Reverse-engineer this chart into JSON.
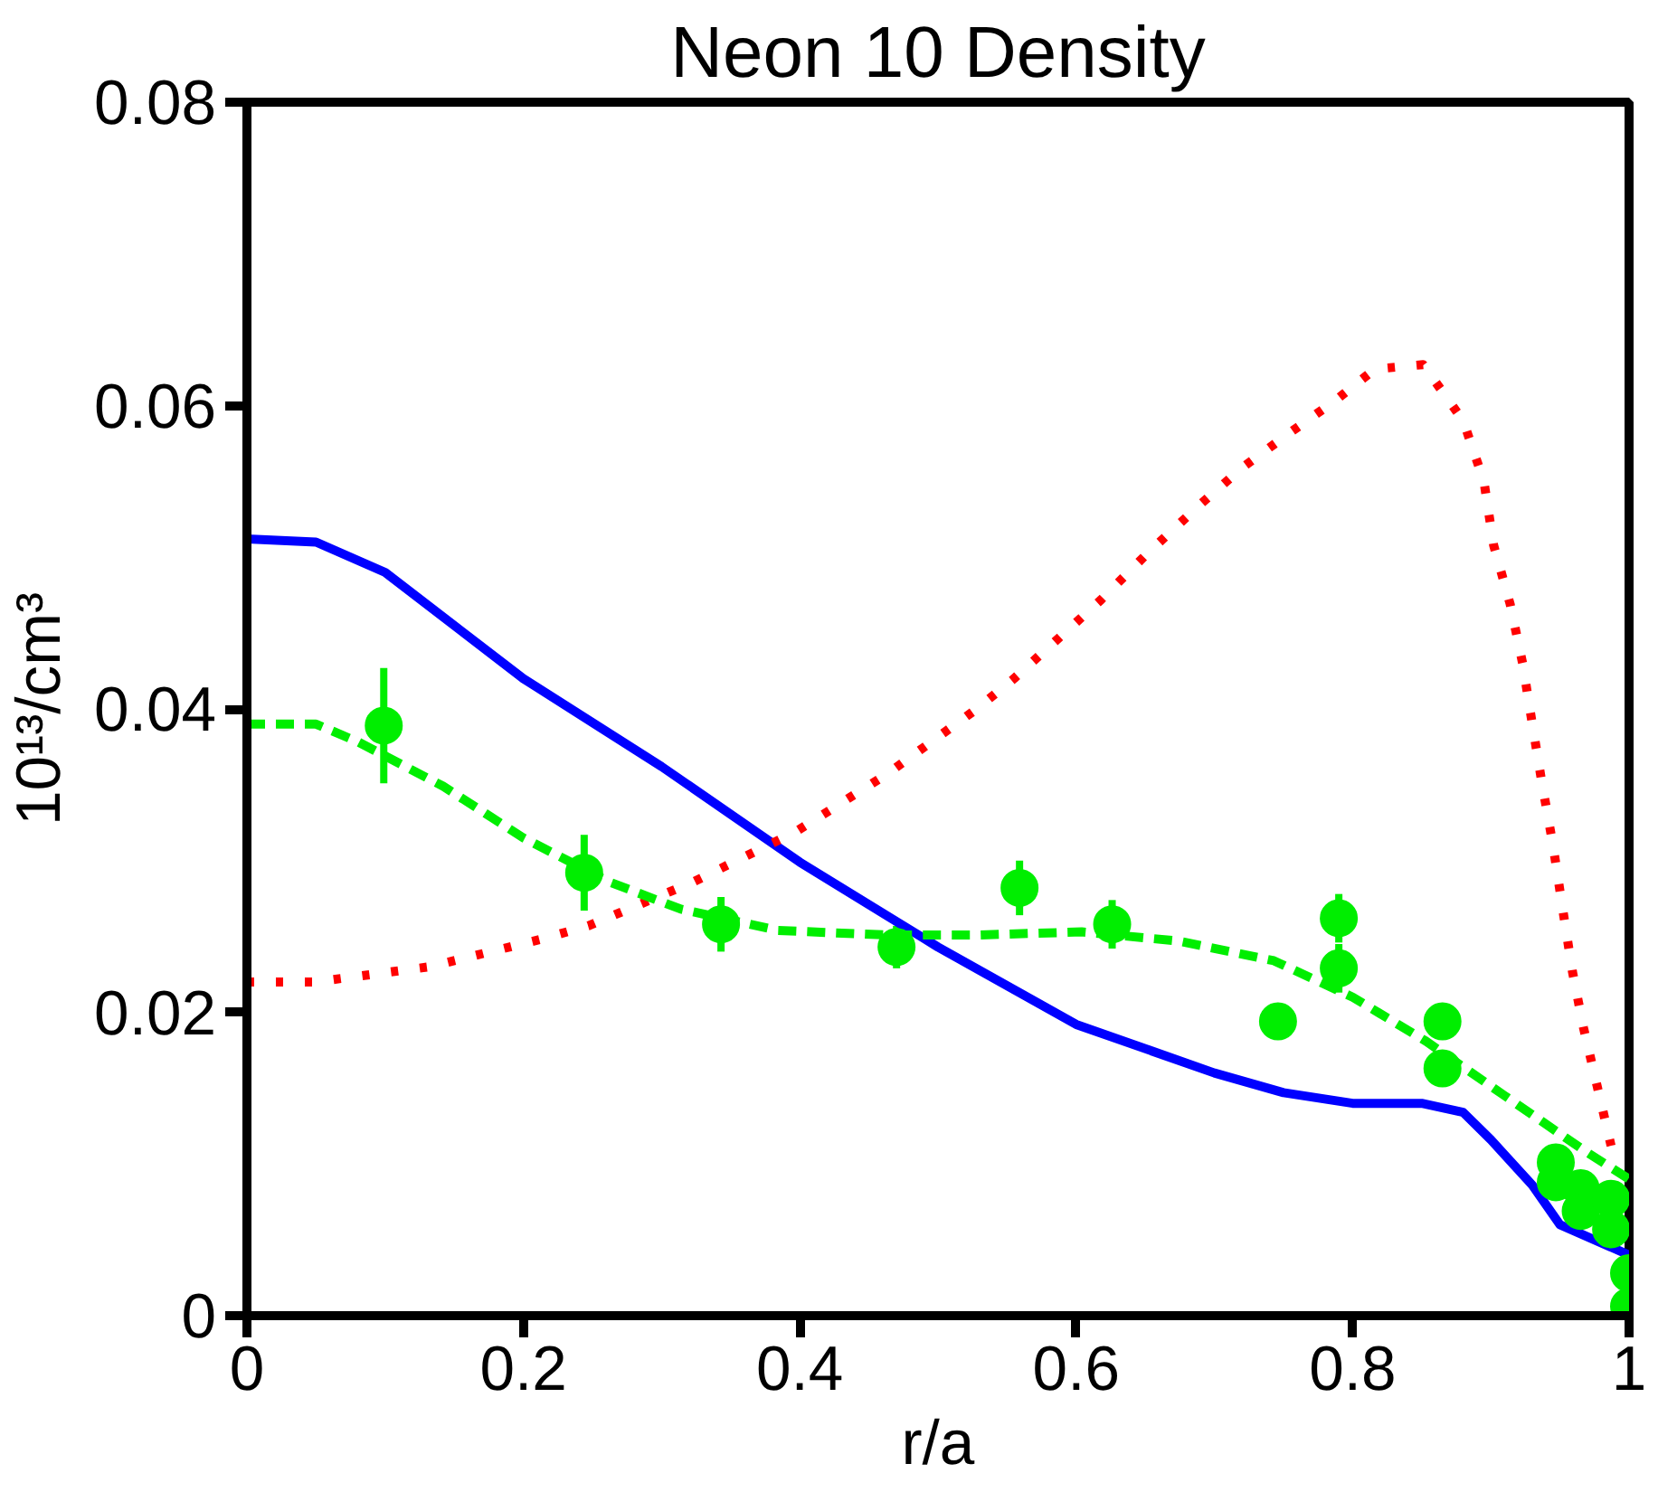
{
  "chart_data": {
    "type": "line",
    "title": "Neon 10 Density",
    "xlabel": "r/a",
    "ylabel": "10¹³/cm³",
    "xlim": [
      0,
      1
    ],
    "ylim": [
      0,
      0.08
    ],
    "xticks": [
      0,
      0.2,
      0.4,
      0.6,
      0.8,
      1
    ],
    "yticks": [
      0,
      0.02,
      0.04,
      0.06,
      0.08
    ],
    "grid": false,
    "series": [
      {
        "color": "#0000ff",
        "line_style": "solid",
        "x": [
          0,
          0.05,
          0.1,
          0.2,
          0.3,
          0.4,
          0.5,
          0.6,
          0.7,
          0.75,
          0.8,
          0.85,
          0.88,
          0.9,
          0.93,
          0.95,
          1.0
        ],
        "values": [
          0.0512,
          0.051,
          0.049,
          0.042,
          0.0362,
          0.0299,
          0.0243,
          0.0192,
          0.016,
          0.0147,
          0.014,
          0.014,
          0.0134,
          0.0116,
          0.0086,
          0.006,
          0.004
        ]
      },
      {
        "color": "#ff0000",
        "line_style": "dotted",
        "x": [
          0,
          0.049,
          0.132,
          0.212,
          0.247,
          0.323,
          0.397,
          0.463,
          0.528,
          0.555,
          0.618,
          0.652,
          0.69,
          0.72,
          0.756,
          0.787,
          0.816,
          0.851,
          0.88,
          0.895,
          0.902,
          0.914,
          0.923,
          0.93,
          0.937,
          0.945,
          0.952,
          0.959,
          0.967,
          0.977,
          0.987
        ],
        "values": [
          0.022,
          0.022,
          0.023,
          0.0248,
          0.0257,
          0.0286,
          0.0319,
          0.0357,
          0.04,
          0.042,
          0.0472,
          0.0503,
          0.0535,
          0.0559,
          0.0583,
          0.0603,
          0.0624,
          0.0627,
          0.059,
          0.055,
          0.0508,
          0.0469,
          0.043,
          0.039,
          0.0351,
          0.031,
          0.0268,
          0.0227,
          0.019,
          0.0151,
          0.0112
        ]
      },
      {
        "color": "#00ee00",
        "line_style": "dashed",
        "x": [
          0,
          0.05,
          0.081,
          0.142,
          0.2,
          0.262,
          0.314,
          0.384,
          0.462,
          0.53,
          0.604,
          0.674,
          0.743,
          0.8,
          0.853,
          0.91,
          0.969,
          1.0
        ],
        "values": [
          0.039,
          0.039,
          0.0378,
          0.0349,
          0.0315,
          0.0286,
          0.0268,
          0.0254,
          0.0251,
          0.0251,
          0.0253,
          0.0247,
          0.0234,
          0.021,
          0.0181,
          0.0145,
          0.0108,
          0.009
        ]
      },
      {
        "type": "scatter",
        "color": "#00ee00",
        "marker": "circle",
        "x": [
          0.099,
          0.244,
          0.343,
          0.47,
          0.559,
          0.626,
          0.746,
          0.79,
          0.79,
          0.865,
          0.865,
          0.947,
          0.947,
          0.965,
          0.965,
          0.987,
          0.987,
          1.0,
          1.0
        ],
        "values": [
          0.0389,
          0.0292,
          0.0258,
          0.0243,
          0.0282,
          0.0258,
          0.0194,
          0.0262,
          0.0229,
          0.0194,
          0.0163,
          0.0101,
          0.0088,
          0.0084,
          0.0069,
          0.0077,
          0.0057,
          0.0028,
          0.0006
        ],
        "errors": [
          0.0038,
          0.0025,
          0.0018,
          0.0014,
          0.0018,
          0.0016,
          0.001,
          0.0016,
          0.0016,
          0.001,
          0.001,
          null,
          null,
          null,
          null,
          null,
          null,
          null,
          null
        ]
      }
    ]
  }
}
